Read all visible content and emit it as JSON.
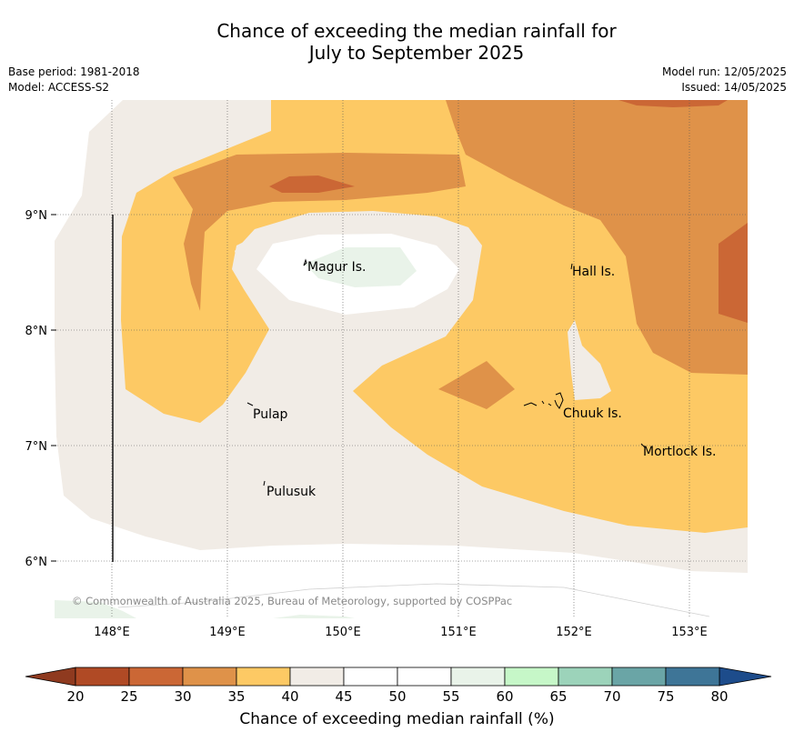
{
  "title": {
    "line1": "Chance of exceeding the median rainfall for",
    "line2": "July to September 2025"
  },
  "meta": {
    "base_period": "Base period: 1981-2018",
    "model": "Model: ACCESS-S2",
    "model_run": "Model run: 12/05/2025",
    "issued": "Issued: 14/05/2025"
  },
  "map": {
    "lon_ticks": [
      "148°E",
      "149°E",
      "150°E",
      "151°E",
      "152°E",
      "153°E"
    ],
    "lat_ticks": [
      "9°N",
      "8°N",
      "7°N",
      "6°N"
    ],
    "places": {
      "magur": "Magur Is.",
      "hall": "Hall Is.",
      "pulap": "Pulap",
      "chuuk": "Chuuk Is.",
      "mortlock": "Mortlock Is.",
      "pulusuk": "Pulusuk"
    },
    "copyright": "© Commonwealth of Australia 2025, Bureau of Meteorology, supported by COSPPac"
  },
  "colorbar": {
    "title": "Chance of exceeding median rainfall (%)",
    "ticks": [
      "20",
      "25",
      "30",
      "35",
      "40",
      "45",
      "50",
      "55",
      "60",
      "65",
      "70",
      "75",
      "80"
    ],
    "colors": [
      "#b04a25",
      "#cb6735",
      "#df9249",
      "#fdc964",
      "#f1ece6",
      "#ffffff",
      "#ffffff",
      "#e9f3e9",
      "#c6f7c8",
      "#9cd3ba",
      "#6aa5a6",
      "#3e7597"
    ],
    "low_extend_color": "#8f3a1f",
    "high_extend_color": "#1d4c8b"
  }
}
